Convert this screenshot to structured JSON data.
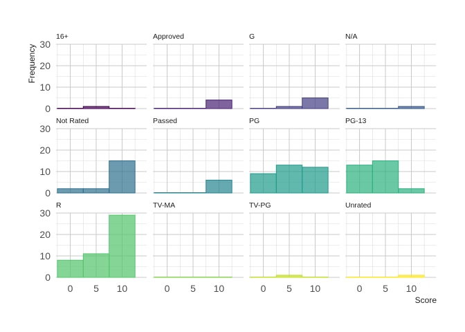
{
  "chart_data": {
    "type": "bar",
    "subtype": "faceted-histogram",
    "xlabel": "Score",
    "ylabel": "Frequency",
    "ylim": [
      0,
      30
    ],
    "yticks": [
      0,
      10,
      20,
      30
    ],
    "xticks": [
      0,
      5,
      10
    ],
    "xlim": [
      -2.75,
      14.75
    ],
    "bins": [
      [
        -2.5,
        2.5
      ],
      [
        2.5,
        7.5
      ],
      [
        7.5,
        12.5
      ]
    ],
    "grid": true,
    "legend": "none",
    "facets": [
      {
        "name": "16+",
        "values": [
          0,
          1,
          0
        ],
        "color": "#440154"
      },
      {
        "name": "Approved",
        "values": [
          0,
          0,
          4
        ],
        "color": "#482173"
      },
      {
        "name": "G",
        "values": [
          0,
          1,
          5
        ],
        "color": "#433E85"
      },
      {
        "name": "N/A",
        "values": [
          0,
          0,
          1
        ],
        "color": "#38598C"
      },
      {
        "name": "Not Rated",
        "values": [
          2,
          2,
          15
        ],
        "color": "#2D708E"
      },
      {
        "name": "Passed",
        "values": [
          0,
          0,
          6
        ],
        "color": "#25858E"
      },
      {
        "name": "PG",
        "values": [
          9,
          13,
          12
        ],
        "color": "#1E9B8A"
      },
      {
        "name": "PG-13",
        "values": [
          13,
          15,
          2
        ],
        "color": "#2BB07F"
      },
      {
        "name": "R",
        "values": [
          8,
          11,
          29
        ],
        "color": "#51C56A"
      },
      {
        "name": "TV-MA",
        "values": [
          0,
          0,
          0
        ],
        "color": "#85D54A"
      },
      {
        "name": "TV-PG",
        "values": [
          0,
          1,
          0
        ],
        "color": "#C2DF23"
      },
      {
        "name": "Unrated",
        "values": [
          0,
          0,
          1
        ],
        "color": "#FDE725"
      }
    ]
  }
}
